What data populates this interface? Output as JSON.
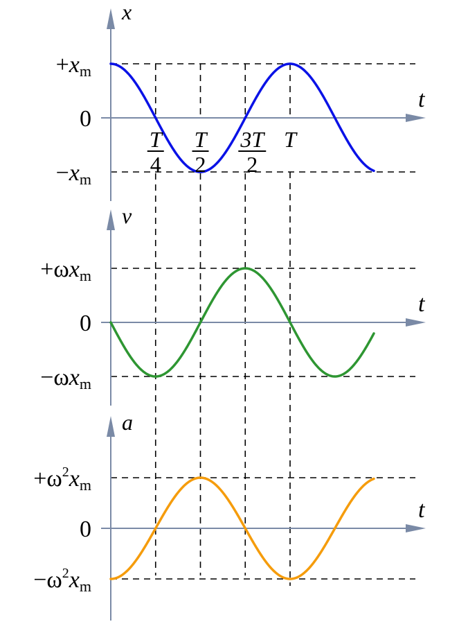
{
  "colors": {
    "axis": "#7a8aa6",
    "displacement": "#0a12e6",
    "velocity": "#2e9632",
    "acceleration": "#f59c0c",
    "guide": "#000000"
  },
  "panels": [
    {
      "id": "displacement",
      "axis_label": "x",
      "t_label": "t",
      "levels": [
        {
          "sign": "+",
          "prefix": "",
          "power": "",
          "var": "x",
          "sub": "m"
        },
        {
          "text": "0"
        },
        {
          "sign": "−",
          "prefix": "",
          "power": "",
          "var": "x",
          "sub": "m"
        }
      ]
    },
    {
      "id": "velocity",
      "axis_label": "v",
      "t_label": "t",
      "levels": [
        {
          "sign": "+",
          "prefix": "ω",
          "power": "",
          "var": "x",
          "sub": "m"
        },
        {
          "text": "0"
        },
        {
          "sign": "−",
          "prefix": "ω",
          "power": "",
          "var": "x",
          "sub": "m"
        }
      ]
    },
    {
      "id": "acceleration",
      "axis_label": "a",
      "t_label": "t",
      "levels": [
        {
          "sign": "+",
          "prefix": "ω",
          "power": "2",
          "var": "x",
          "sub": "m"
        },
        {
          "text": "0"
        },
        {
          "sign": "−",
          "prefix": "ω",
          "power": "2",
          "var": "x",
          "sub": "m"
        }
      ]
    }
  ],
  "time_marks": [
    {
      "num": "T",
      "den": "4"
    },
    {
      "num": "T",
      "den": "2"
    },
    {
      "num": "3T",
      "den": "2"
    },
    {
      "num": "T",
      "den": ""
    }
  ]
}
